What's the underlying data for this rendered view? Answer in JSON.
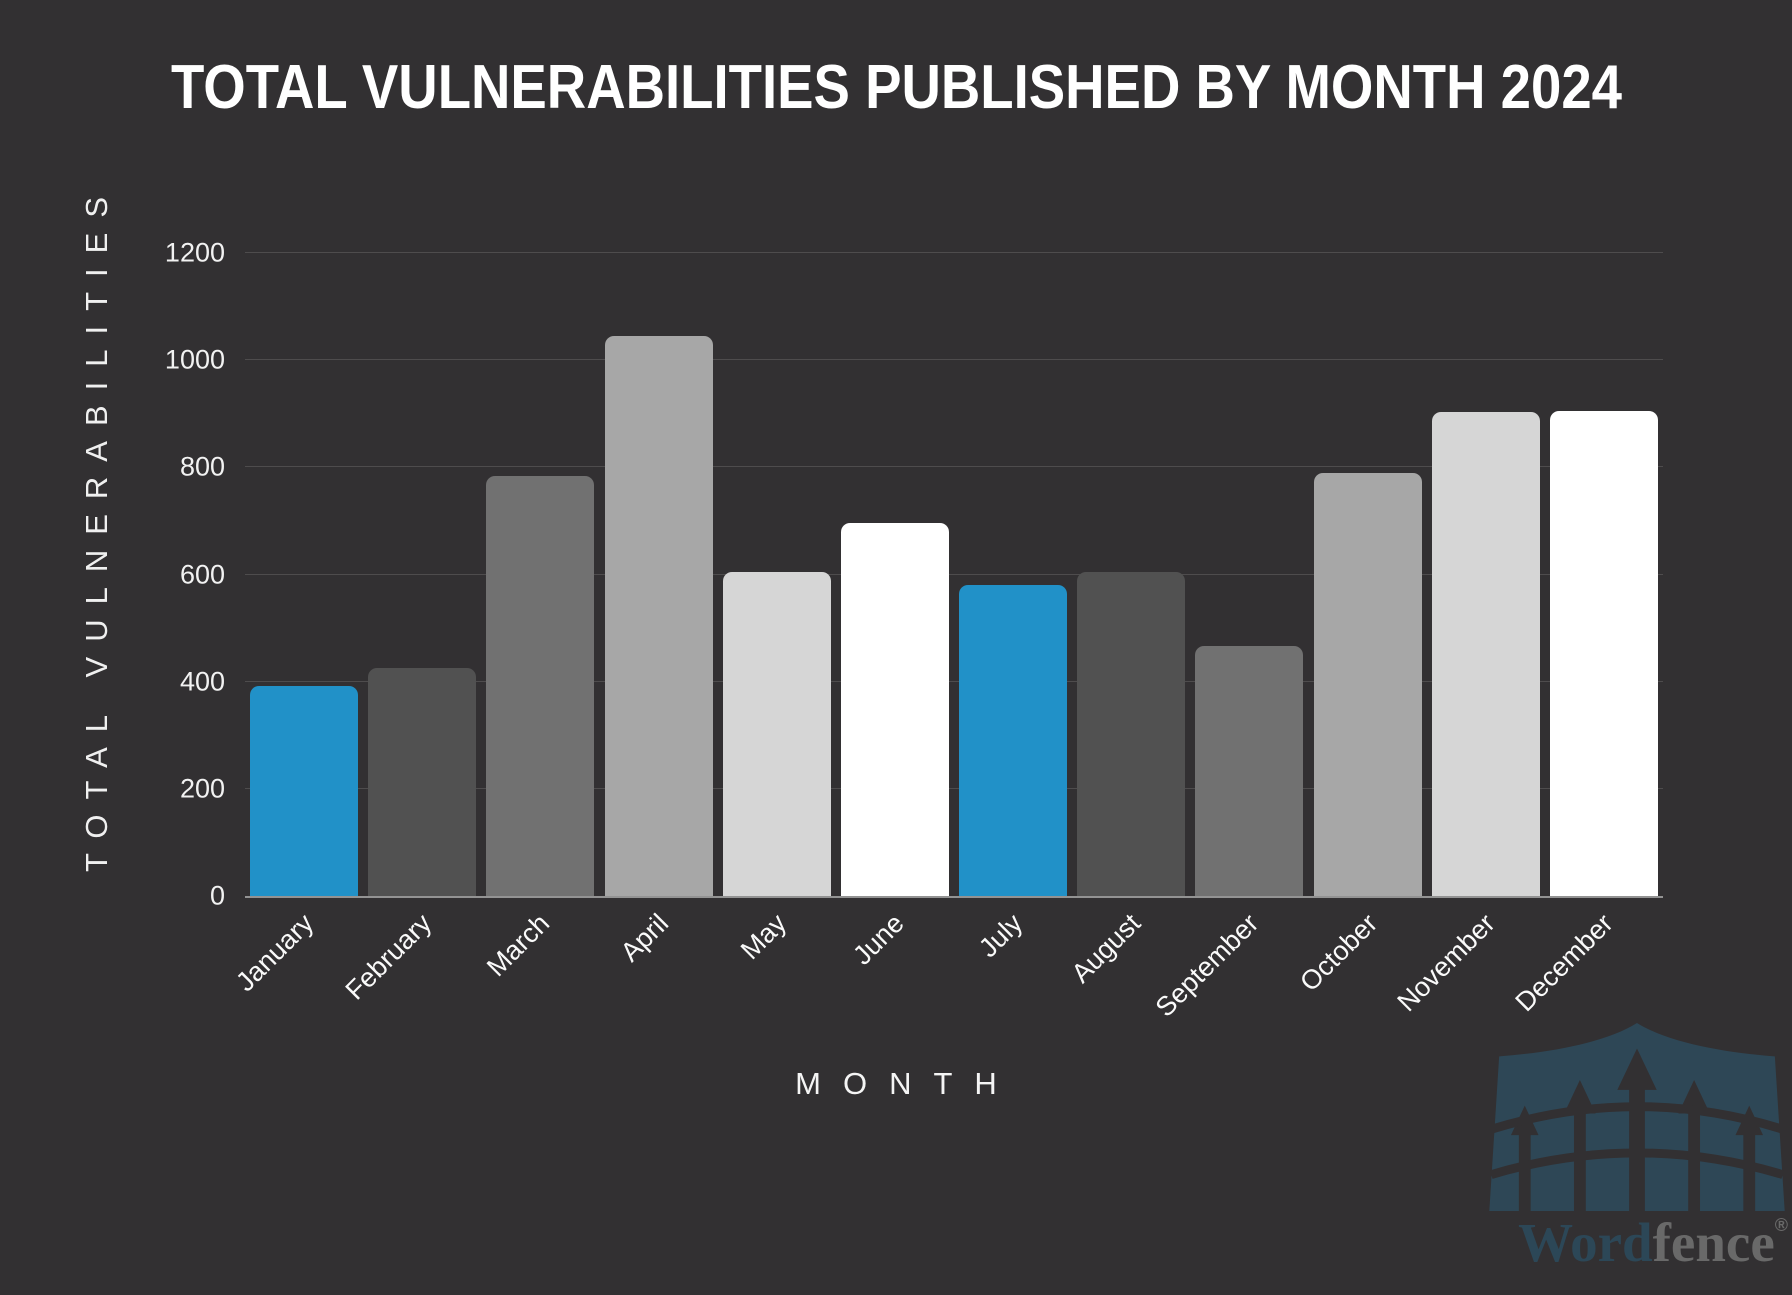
{
  "chart_data": {
    "type": "bar",
    "title": "TOTAL VULNERABILITIES PUBLISHED BY MONTH 2024",
    "xlabel": "MONTH",
    "ylabel": "TOTAL VULNERABILITIES",
    "categories": [
      "January",
      "February",
      "March",
      "April",
      "May",
      "June",
      "July",
      "August",
      "September",
      "October",
      "November",
      "December"
    ],
    "values": [
      392,
      426,
      784,
      1046,
      604,
      696,
      581,
      604,
      466,
      790,
      903,
      906
    ],
    "ylim": [
      0,
      1200
    ],
    "yticks": [
      0,
      200,
      400,
      600,
      800,
      1000,
      1200
    ],
    "grid": true,
    "legend_position": "none",
    "bar_colors": [
      "#2191C8",
      "#515151",
      "#717171",
      "#A7A7A7",
      "#D6D6D6",
      "#FFFFFF",
      "#2191C8",
      "#515151",
      "#717171",
      "#A7A7A7",
      "#D6D6D6",
      "#FFFFFF"
    ],
    "highlight_color": "#2191C8",
    "background_color": "#323032",
    "gridline_color": "#4E4C4D"
  },
  "logo": {
    "brand_prefix": "Word",
    "brand_suffix": "fence",
    "registered_mark": "®"
  }
}
